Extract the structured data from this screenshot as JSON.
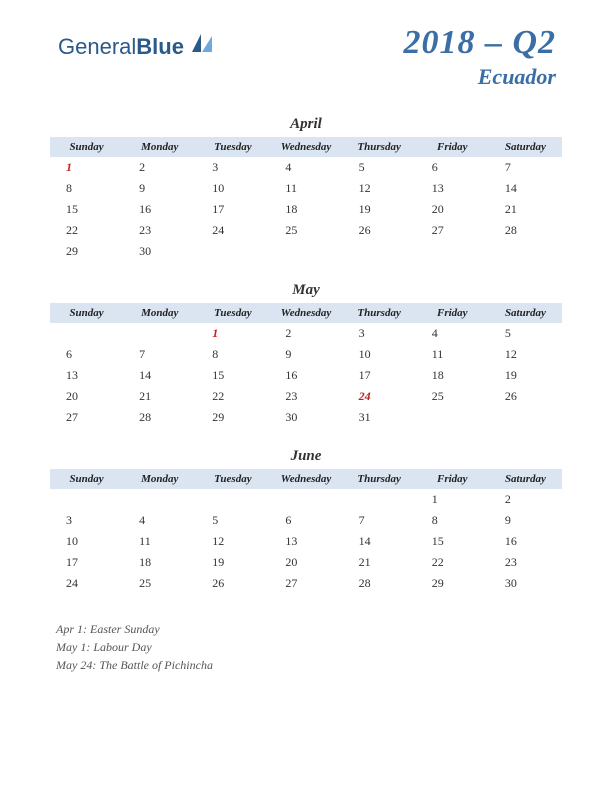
{
  "logo": {
    "text1": "General",
    "text2": "Blue",
    "mark_color1": "#2a5a8a",
    "mark_color2": "#6fa8dc"
  },
  "header": {
    "period": "2018 – Q2",
    "country": "Ecuador",
    "title_color": "#3a6ea5"
  },
  "day_headers": [
    "Sunday",
    "Monday",
    "Tuesday",
    "Wednesday",
    "Thursday",
    "Friday",
    "Saturday"
  ],
  "header_bg": "#dbe5f1",
  "holiday_color": "#c02020",
  "months": [
    {
      "name": "April",
      "weeks": [
        [
          {
            "d": "1",
            "h": true
          },
          {
            "d": "2"
          },
          {
            "d": "3"
          },
          {
            "d": "4"
          },
          {
            "d": "5"
          },
          {
            "d": "6"
          },
          {
            "d": "7"
          }
        ],
        [
          {
            "d": "8"
          },
          {
            "d": "9"
          },
          {
            "d": "10"
          },
          {
            "d": "11"
          },
          {
            "d": "12"
          },
          {
            "d": "13"
          },
          {
            "d": "14"
          }
        ],
        [
          {
            "d": "15"
          },
          {
            "d": "16"
          },
          {
            "d": "17"
          },
          {
            "d": "18"
          },
          {
            "d": "19"
          },
          {
            "d": "20"
          },
          {
            "d": "21"
          }
        ],
        [
          {
            "d": "22"
          },
          {
            "d": "23"
          },
          {
            "d": "24"
          },
          {
            "d": "25"
          },
          {
            "d": "26"
          },
          {
            "d": "27"
          },
          {
            "d": "28"
          }
        ],
        [
          {
            "d": "29"
          },
          {
            "d": "30"
          },
          {
            "d": ""
          },
          {
            "d": ""
          },
          {
            "d": ""
          },
          {
            "d": ""
          },
          {
            "d": ""
          }
        ]
      ]
    },
    {
      "name": "May",
      "weeks": [
        [
          {
            "d": ""
          },
          {
            "d": ""
          },
          {
            "d": "1",
            "h": true
          },
          {
            "d": "2"
          },
          {
            "d": "3"
          },
          {
            "d": "4"
          },
          {
            "d": "5"
          }
        ],
        [
          {
            "d": "6"
          },
          {
            "d": "7"
          },
          {
            "d": "8"
          },
          {
            "d": "9"
          },
          {
            "d": "10"
          },
          {
            "d": "11"
          },
          {
            "d": "12"
          }
        ],
        [
          {
            "d": "13"
          },
          {
            "d": "14"
          },
          {
            "d": "15"
          },
          {
            "d": "16"
          },
          {
            "d": "17"
          },
          {
            "d": "18"
          },
          {
            "d": "19"
          }
        ],
        [
          {
            "d": "20"
          },
          {
            "d": "21"
          },
          {
            "d": "22"
          },
          {
            "d": "23"
          },
          {
            "d": "24",
            "h": true
          },
          {
            "d": "25"
          },
          {
            "d": "26"
          }
        ],
        [
          {
            "d": "27"
          },
          {
            "d": "28"
          },
          {
            "d": "29"
          },
          {
            "d": "30"
          },
          {
            "d": "31"
          },
          {
            "d": ""
          },
          {
            "d": ""
          }
        ]
      ]
    },
    {
      "name": "June",
      "weeks": [
        [
          {
            "d": ""
          },
          {
            "d": ""
          },
          {
            "d": ""
          },
          {
            "d": ""
          },
          {
            "d": ""
          },
          {
            "d": "1"
          },
          {
            "d": "2"
          }
        ],
        [
          {
            "d": "3"
          },
          {
            "d": "4"
          },
          {
            "d": "5"
          },
          {
            "d": "6"
          },
          {
            "d": "7"
          },
          {
            "d": "8"
          },
          {
            "d": "9"
          }
        ],
        [
          {
            "d": "10"
          },
          {
            "d": "11"
          },
          {
            "d": "12"
          },
          {
            "d": "13"
          },
          {
            "d": "14"
          },
          {
            "d": "15"
          },
          {
            "d": "16"
          }
        ],
        [
          {
            "d": "17"
          },
          {
            "d": "18"
          },
          {
            "d": "19"
          },
          {
            "d": "20"
          },
          {
            "d": "21"
          },
          {
            "d": "22"
          },
          {
            "d": "23"
          }
        ],
        [
          {
            "d": "24"
          },
          {
            "d": "25"
          },
          {
            "d": "26"
          },
          {
            "d": "27"
          },
          {
            "d": "28"
          },
          {
            "d": "29"
          },
          {
            "d": "30"
          }
        ]
      ]
    }
  ],
  "holidays": [
    "Apr 1: Easter Sunday",
    "May 1: Labour Day",
    "May 24: The Battle of Pichincha"
  ]
}
